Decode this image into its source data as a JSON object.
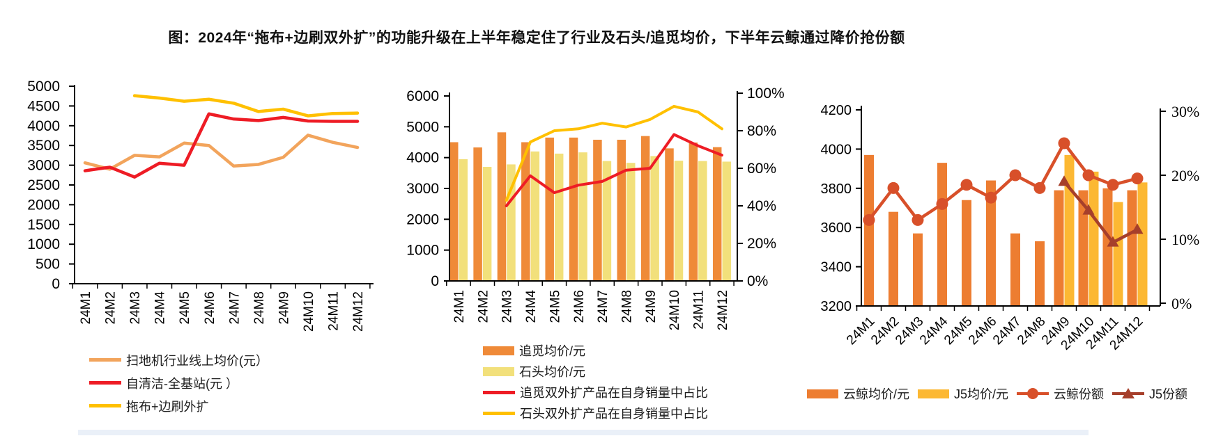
{
  "title": "图：2024年“拖布+边刷双外扩”的功能升级在上半年稳定住了行业及石头/追觅均价，下半年云鲸通过降价抢份额",
  "chart_data": [
    {
      "id": "industry-price",
      "type": "line",
      "categories": [
        "24M1",
        "24M2",
        "24M3",
        "24M4",
        "24M5",
        "24M6",
        "24M7",
        "24M8",
        "24M9",
        "24M10",
        "24M11",
        "24M12"
      ],
      "ylim": [
        0,
        5000
      ],
      "y_ticks": [
        0,
        500,
        1000,
        1500,
        2000,
        2500,
        3000,
        3500,
        4000,
        4500,
        5000
      ],
      "grid": false,
      "legend_position": "bottom-left-stacked",
      "series": [
        {
          "name": "扫地机行业线上均价(元）",
          "color": "#F2A45C",
          "swatch": "line",
          "values": [
            3060,
            2900,
            3250,
            3210,
            3560,
            3500,
            2980,
            3020,
            3200,
            3760,
            3580,
            3450
          ]
        },
        {
          "name": "自清洁-全基站(元 ）",
          "color": "#EE1C25",
          "swatch": "line",
          "values": [
            2860,
            2950,
            2700,
            3050,
            3000,
            4300,
            4170,
            4130,
            4210,
            4120,
            4110,
            4110
          ]
        },
        {
          "name": "拖布+边刷外扩",
          "color": "#FFC000",
          "swatch": "line",
          "values": [
            null,
            null,
            4760,
            4700,
            4620,
            4670,
            4570,
            4360,
            4420,
            4250,
            4310,
            4320
          ]
        }
      ]
    },
    {
      "id": "dreame-roborock",
      "type": "bar+line",
      "categories": [
        "24M1",
        "24M2",
        "24M3",
        "24M4",
        "24M5",
        "24M6",
        "24M7",
        "24M8",
        "24M9",
        "24M10",
        "24M11",
        "24M12"
      ],
      "left_ylim": [
        0,
        6000
      ],
      "left_ticks": [
        0,
        1000,
        2000,
        3000,
        4000,
        5000,
        6000
      ],
      "right_ylim_pct": [
        0,
        100
      ],
      "right_ticks_pct": [
        0,
        20,
        40,
        60,
        80,
        100
      ],
      "grid": false,
      "legend_position": "bottom-left-stacked",
      "bar_series": [
        {
          "name": "追觅均价/元",
          "color": "#EF8A38",
          "swatch": "rect",
          "values": [
            4500,
            4330,
            4820,
            4500,
            4650,
            4650,
            4580,
            4580,
            4700,
            4300,
            4490,
            4340
          ]
        },
        {
          "name": "石头均价/元",
          "color": "#F2E07B",
          "swatch": "rect",
          "values": [
            3950,
            3700,
            3780,
            4200,
            4130,
            4170,
            3890,
            3830,
            4050,
            3900,
            3890,
            3870
          ]
        }
      ],
      "line_series_pct": [
        {
          "name": "追觅双外扩产品在自身销量中占比",
          "color": "#EE1C25",
          "swatch": "line",
          "values": [
            null,
            null,
            40,
            56,
            47,
            51,
            53,
            59,
            60,
            78,
            72,
            67
          ]
        },
        {
          "name": "石头双外扩产品在自身销量中占比",
          "color": "#FFC000",
          "swatch": "line",
          "values": [
            null,
            null,
            43,
            74,
            80,
            81,
            84,
            82,
            86,
            93,
            90,
            81
          ]
        }
      ]
    },
    {
      "id": "narwal-j5",
      "type": "bar+line",
      "categories": [
        "24M1",
        "24M2",
        "24M3",
        "24M4",
        "24M5",
        "24M6",
        "24M7",
        "24M8",
        "24M9",
        "24M10",
        "24M11",
        "24M12"
      ],
      "left_ylim": [
        3200,
        4200
      ],
      "left_ticks": [
        3200,
        3400,
        3600,
        3800,
        4000,
        4200
      ],
      "right_ylim_pct": [
        0,
        30
      ],
      "right_ticks_pct": [
        0,
        10,
        20,
        30
      ],
      "grid": false,
      "legend_position": "bottom-horizontal",
      "bar_series": [
        {
          "name": "云鲸均价/元",
          "color": "#ED7D31",
          "swatch": "rect",
          "values": [
            3970,
            3680,
            3570,
            3930,
            3740,
            3840,
            3570,
            3530,
            3790,
            3790,
            3800,
            3790
          ]
        },
        {
          "name": "J5均价/元",
          "color": "#FCB833",
          "swatch": "rect",
          "values": [
            null,
            null,
            null,
            null,
            null,
            null,
            null,
            null,
            3970,
            3885,
            3730,
            3830
          ]
        }
      ],
      "line_series_pct": [
        {
          "name": "云鲸份额",
          "color": "#D8502A",
          "swatch": "line-circle",
          "marker": "circle",
          "values": [
            13,
            18,
            13,
            15.5,
            18.5,
            16.5,
            20,
            18,
            25,
            20,
            18.5,
            19.5
          ]
        },
        {
          "name": "J5份额",
          "color": "#A63F2B",
          "swatch": "line-triangle",
          "marker": "triangle",
          "values": [
            null,
            null,
            null,
            null,
            null,
            null,
            null,
            null,
            19,
            14.5,
            9.5,
            11.5
          ]
        }
      ]
    }
  ],
  "footer_band_color": "#EAF0F8"
}
